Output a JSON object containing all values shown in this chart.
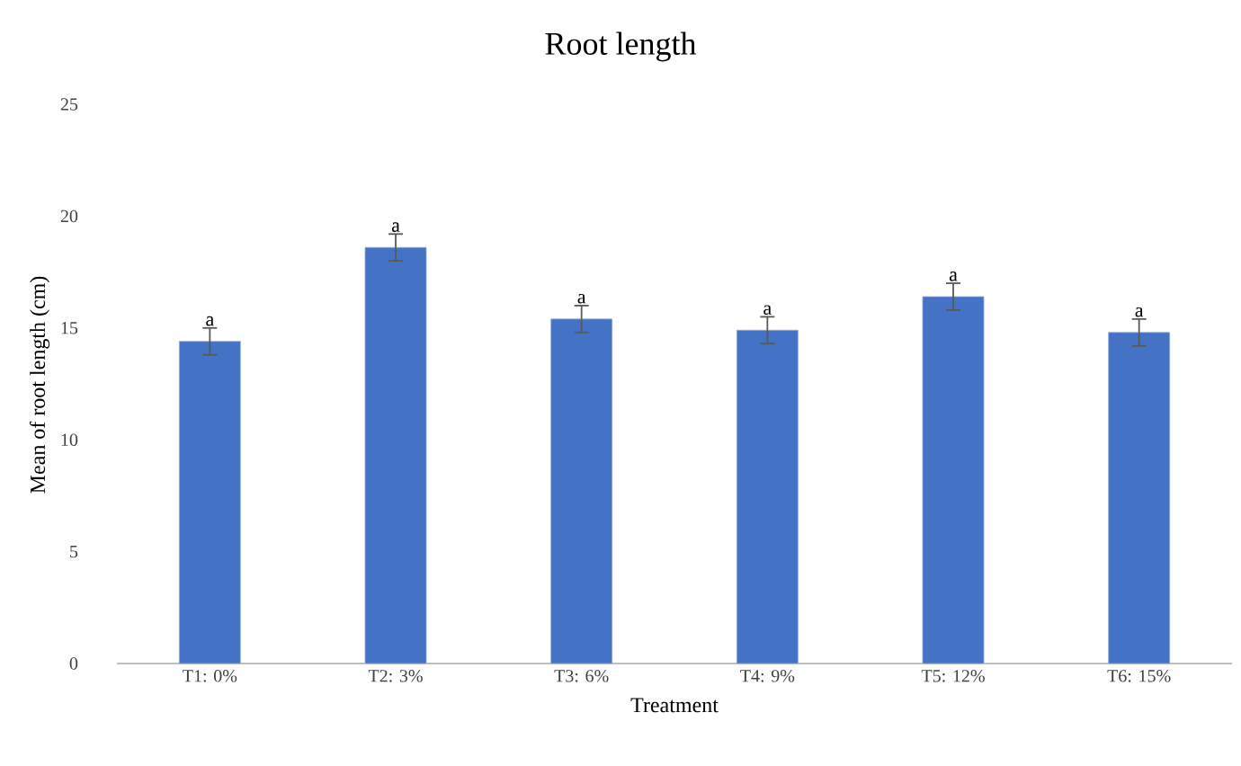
{
  "chart_data": {
    "type": "bar",
    "title": "Root length",
    "xlabel": "Treatment",
    "ylabel": "Mean of root length (cm)",
    "categories": [
      "T1: 0%",
      "T2: 3%",
      "T3: 6%",
      "T4: 9%",
      "T5: 12%",
      "T6: 15%"
    ],
    "values": [
      14.4,
      18.6,
      15.4,
      14.9,
      16.4,
      14.8
    ],
    "errors": [
      0.6,
      0.6,
      0.6,
      0.6,
      0.6,
      0.6
    ],
    "color": "#4472c4",
    "ylim": [
      0,
      25
    ],
    "yticks": [
      0,
      5,
      10,
      15,
      20,
      25
    ],
    "annotations": [
      {
        "text": "a",
        "x": "T1: 0%",
        "y": 15.0
      },
      {
        "text": "a",
        "x": "T2: 3%",
        "y": 19.2
      },
      {
        "text": "a",
        "x": "T3: 6%",
        "y": 16.0
      },
      {
        "text": "a",
        "x": "T4: 9%",
        "y": 15.5
      },
      {
        "text": "a",
        "x": "T5: 12%",
        "y": 17.0
      },
      {
        "text": "a",
        "x": "T6: 15%",
        "y": 15.4
      }
    ]
  }
}
